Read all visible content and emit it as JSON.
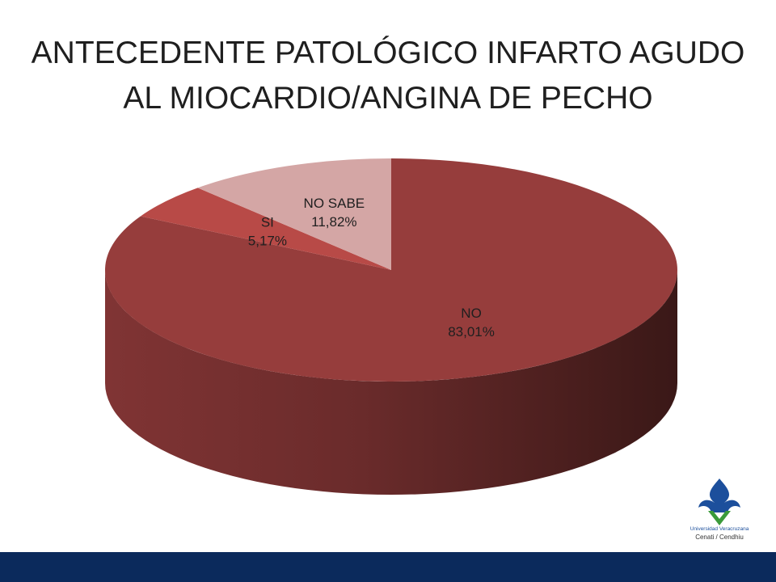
{
  "chart_data": {
    "type": "pie3d",
    "title": "ANTECEDENTE PATOLÓGICO INFARTO AGUDO AL MIOCARDIO/ANGINA DE PECHO",
    "categories": [
      "NO",
      "SI",
      "NO SABE"
    ],
    "values": [
      83.01,
      5.17,
      11.82
    ],
    "value_labels": [
      "83,01%",
      "5,17%",
      "11,82%"
    ],
    "colors": [
      "#963d3c",
      "#b84a47",
      "#d4a6a5"
    ]
  },
  "logo": {
    "name": "Universidad Veracruzana",
    "unit": "Cenati / Cendhiu"
  }
}
